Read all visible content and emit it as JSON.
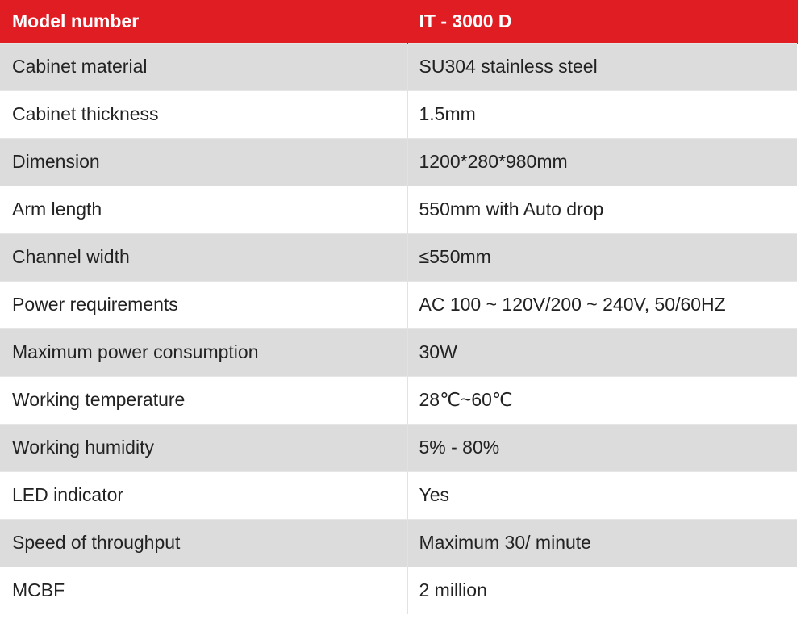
{
  "header": {
    "label": "Model number",
    "value": "IT - 3000 D"
  },
  "rows": [
    {
      "label": "Cabinet material",
      "value": "SU304 stainless steel"
    },
    {
      "label": "Cabinet thickness",
      "value": "1.5mm"
    },
    {
      "label": "Dimension",
      "value": "1200*280*980mm"
    },
    {
      "label": "Arm length",
      "value": "550mm with Auto drop"
    },
    {
      "label": "Channel width",
      "value": "≤550mm"
    },
    {
      "label": "Power requirements",
      "value": "AC 100 ~ 120V/200 ~ 240V, 50/60HZ"
    },
    {
      "label": "Maximum power consumption",
      "value": "30W"
    },
    {
      "label": "Working temperature",
      "value": "28℃~60℃"
    },
    {
      "label": "Working humidity",
      "value": "5% - 80%"
    },
    {
      "label": "LED indicator",
      "value": "Yes"
    },
    {
      "label": "Speed of throughput",
      "value": "Maximum 30/ minute"
    },
    {
      "label": "MCBF",
      "value": "2 million"
    }
  ],
  "colors": {
    "header_bg": "#e11d24",
    "stripe_bg": "#dcdcdc"
  }
}
